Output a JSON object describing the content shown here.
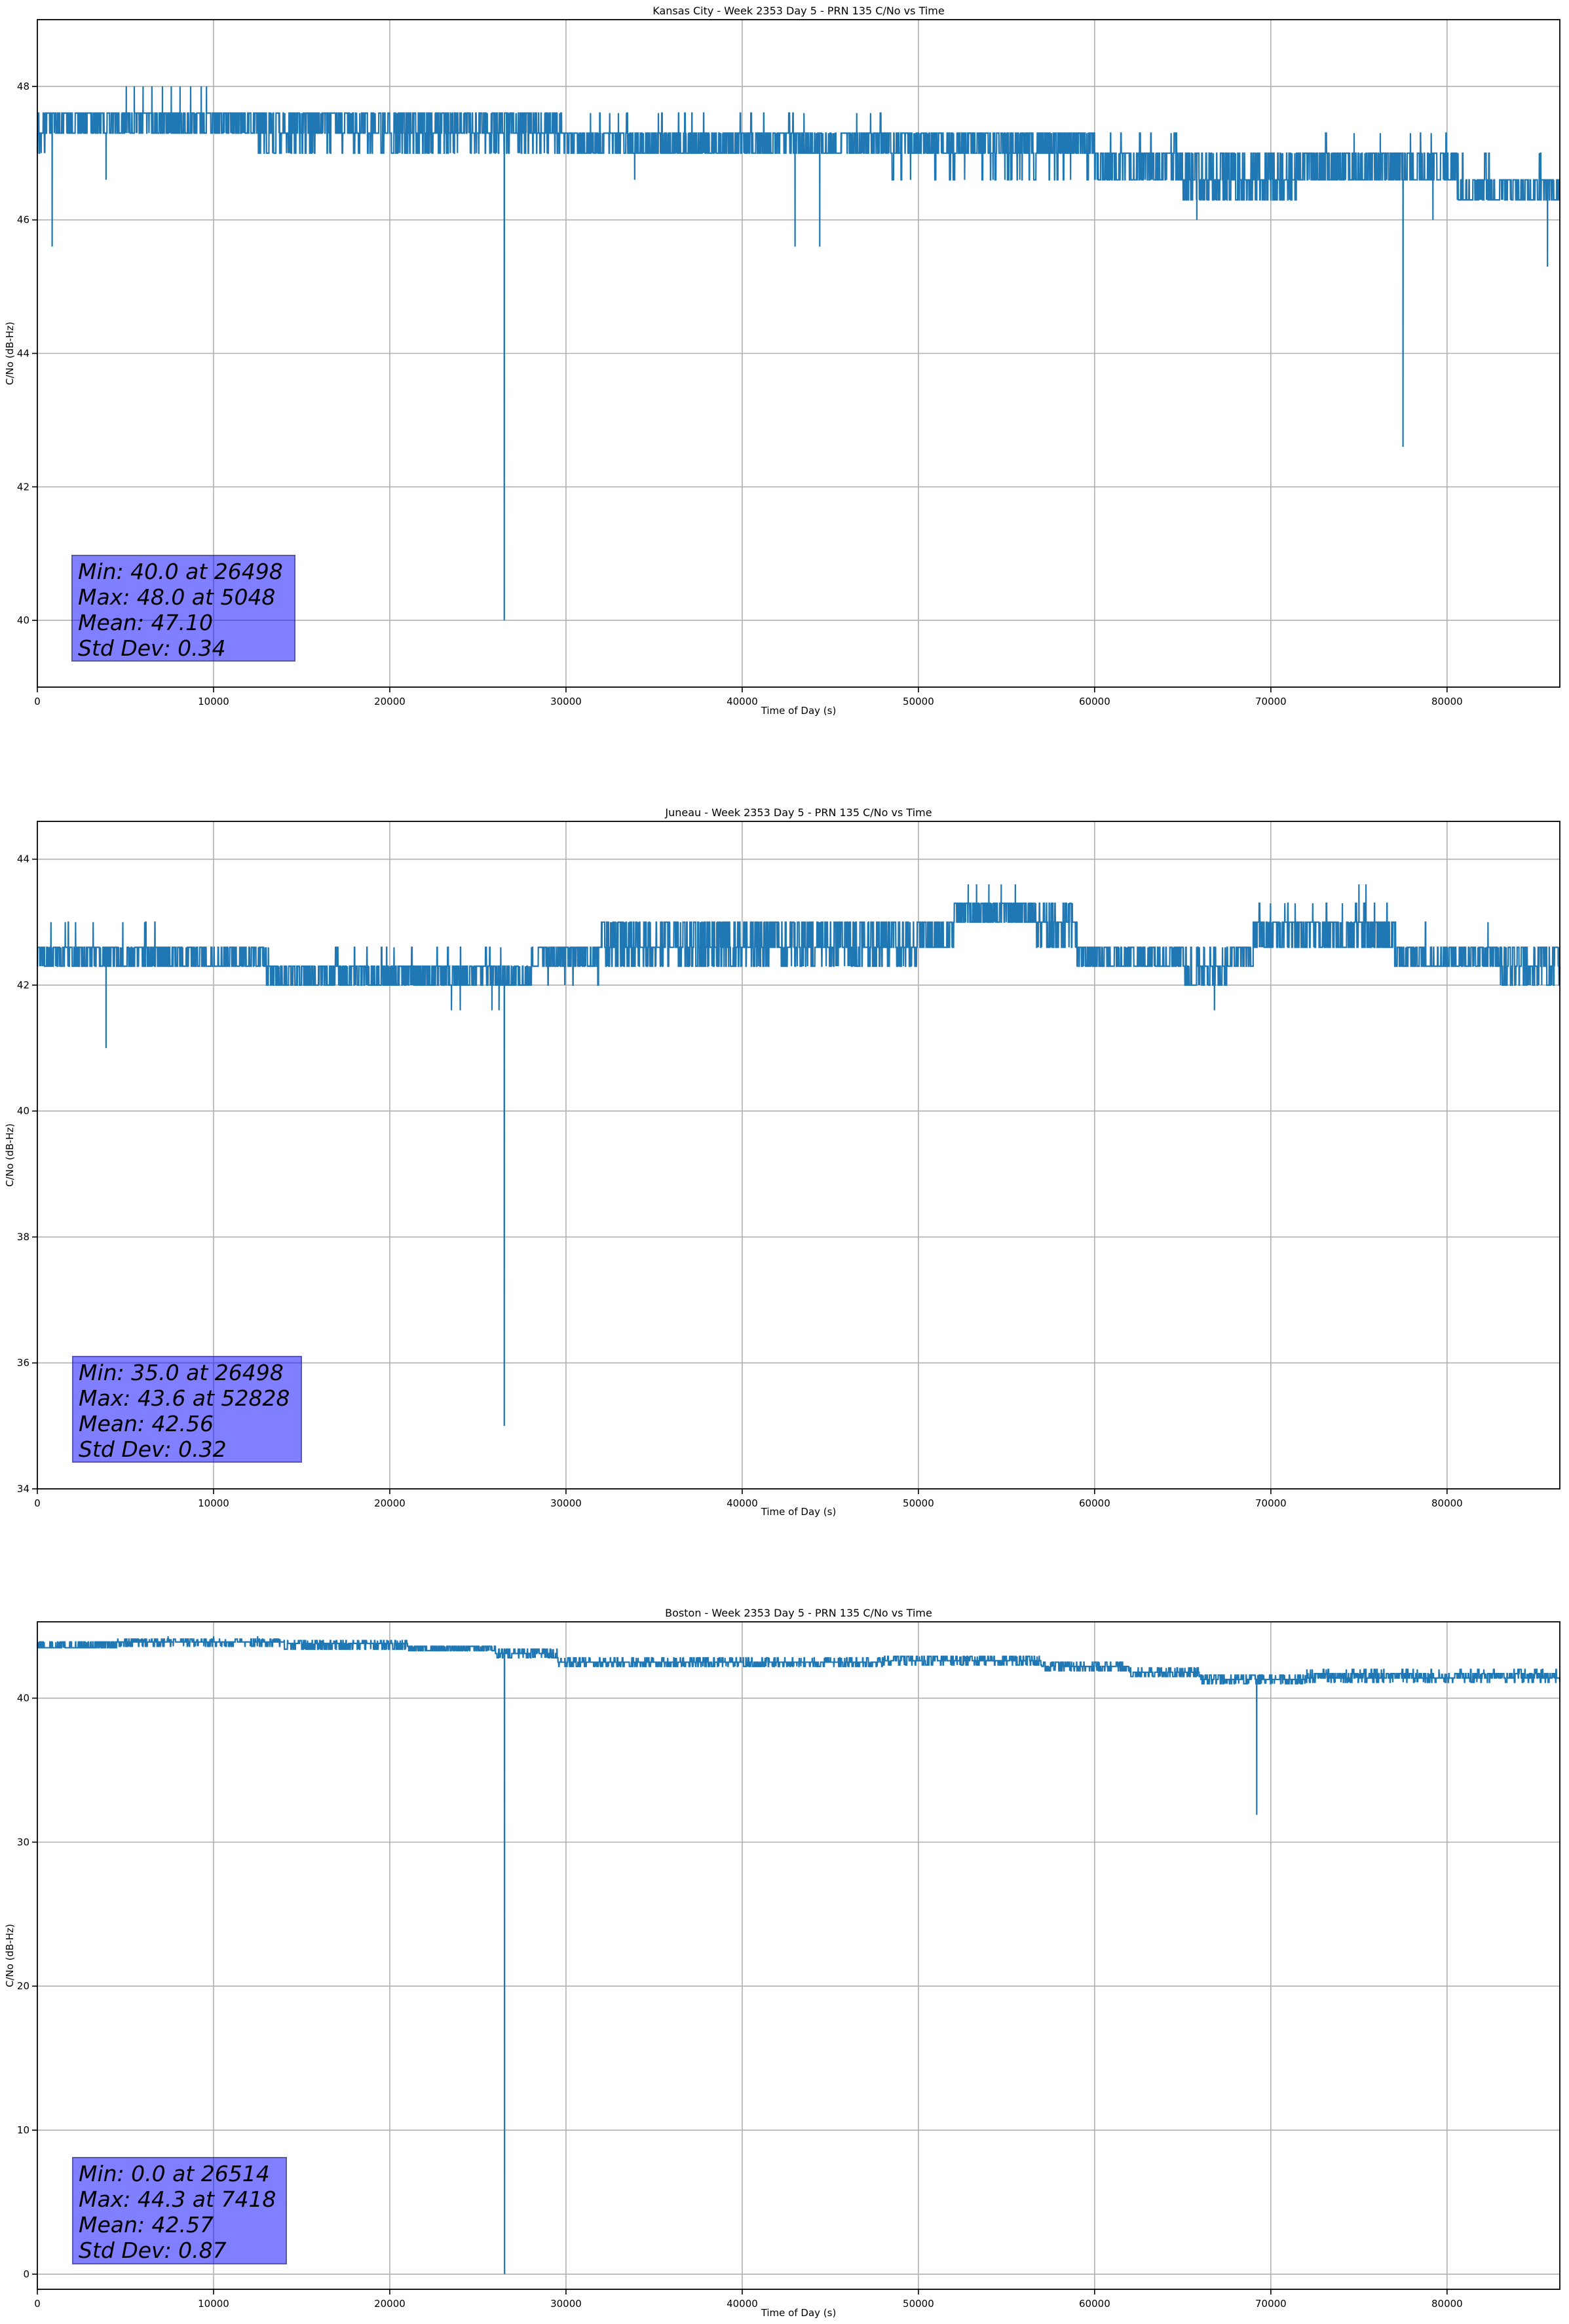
{
  "chart_data": [
    {
      "type": "line",
      "title": "Kansas City - Week 2353 Day 5 - PRN 135 C/No vs Time",
      "xlabel": "Time of Day (s)",
      "ylabel": "C/No (dB-Hz)",
      "xlim": [
        0,
        86400
      ],
      "ylim": [
        39,
        49
      ],
      "xticks": [
        0,
        10000,
        20000,
        30000,
        40000,
        50000,
        60000,
        70000,
        80000
      ],
      "yticks": [
        40,
        42,
        44,
        46,
        48
      ],
      "grid": true,
      "annotation": [
        "Min: 40.0 at 26498",
        "Max: 48.0 at 5048",
        "Mean: 47.10",
        "Std Dev: 0.34"
      ],
      "annotation_color": "#8080ff",
      "series": {
        "name": "C/No",
        "color": "#1f77b4",
        "regimes": [
          {
            "from": 0,
            "to": 500,
            "levels": [
              47.0,
              47.3,
              47.6
            ],
            "weights": [
              1,
              1,
              1
            ]
          },
          {
            "from": 500,
            "to": 12500,
            "levels": [
              47.3,
              47.6
            ],
            "weights": [
              1,
              1.2
            ]
          },
          {
            "from": 12500,
            "to": 30000,
            "levels": [
              47.0,
              47.3,
              47.6
            ],
            "weights": [
              0.4,
              1,
              1
            ]
          },
          {
            "from": 30000,
            "to": 48000,
            "levels": [
              47.0,
              47.3,
              47.6
            ],
            "weights": [
              1,
              1,
              0.05
            ]
          },
          {
            "from": 48000,
            "to": 60000,
            "levels": [
              46.6,
              47.0,
              47.3
            ],
            "weights": [
              0.15,
              1,
              1
            ]
          },
          {
            "from": 60000,
            "to": 65000,
            "levels": [
              46.6,
              47.0,
              47.3
            ],
            "weights": [
              1,
              1,
              0.05
            ]
          },
          {
            "from": 65000,
            "to": 71500,
            "levels": [
              46.3,
              46.6,
              47.0
            ],
            "weights": [
              0.8,
              1,
              0.8
            ]
          },
          {
            "from": 71500,
            "to": 80500,
            "levels": [
              46.6,
              47.0,
              47.3
            ],
            "weights": [
              1,
              1,
              0.04
            ]
          },
          {
            "from": 80500,
            "to": 86400,
            "levels": [
              46.3,
              46.6,
              47.0
            ],
            "weights": [
              1,
              1,
              0.05
            ]
          }
        ],
        "spikes": [
          [
            840,
            45.6
          ],
          [
            3900,
            46.6
          ],
          [
            5048,
            48.0
          ],
          [
            5500,
            48.0
          ],
          [
            6000,
            48.0
          ],
          [
            6500,
            48.0
          ],
          [
            7100,
            48.0
          ],
          [
            7600,
            48.0
          ],
          [
            8100,
            48.0
          ],
          [
            8700,
            48.0
          ],
          [
            9300,
            48.0
          ],
          [
            9600,
            48.0
          ],
          [
            26498,
            40.0
          ],
          [
            33900,
            46.6
          ],
          [
            43000,
            45.6
          ],
          [
            44400,
            45.6
          ],
          [
            46500,
            47.6
          ],
          [
            65800,
            46.0
          ],
          [
            77500,
            42.6
          ],
          [
            79200,
            46.0
          ],
          [
            85700,
            45.3
          ]
        ]
      }
    },
    {
      "type": "line",
      "title": "Juneau - Week 2353 Day 5 - PRN 135 C/No vs Time",
      "xlabel": "Time of Day (s)",
      "ylabel": "C/No (dB-Hz)",
      "xlim": [
        0,
        86400
      ],
      "ylim": [
        34,
        44.6
      ],
      "xticks": [
        0,
        10000,
        20000,
        30000,
        40000,
        50000,
        60000,
        70000,
        80000
      ],
      "yticks": [
        34,
        36,
        38,
        40,
        42,
        44
      ],
      "grid": true,
      "annotation": [
        "Min: 35.0 at 26498",
        "Max: 43.6 at 52828",
        "Mean: 42.56",
        "Std Dev: 0.32"
      ],
      "annotation_color": "#8080ff",
      "series": {
        "name": "C/No",
        "color": "#1f77b4",
        "regimes": [
          {
            "from": 0,
            "to": 13000,
            "levels": [
              42.3,
              42.6,
              43.0
            ],
            "weights": [
              1,
              1,
              0.03
            ]
          },
          {
            "from": 13000,
            "to": 28000,
            "levels": [
              42.0,
              42.3,
              42.6
            ],
            "weights": [
              1,
              1,
              0.05
            ]
          },
          {
            "from": 28000,
            "to": 32000,
            "levels": [
              42.0,
              42.3,
              42.6
            ],
            "weights": [
              0.05,
              1,
              1
            ]
          },
          {
            "from": 32000,
            "to": 50000,
            "levels": [
              42.3,
              42.6,
              43.0
            ],
            "weights": [
              0.6,
              1,
              0.8
            ]
          },
          {
            "from": 50000,
            "to": 52000,
            "levels": [
              42.6,
              43.0
            ],
            "weights": [
              1,
              1
            ]
          },
          {
            "from": 52000,
            "to": 56500,
            "levels": [
              43.0,
              43.3
            ],
            "weights": [
              1,
              1.2
            ]
          },
          {
            "from": 56500,
            "to": 59000,
            "levels": [
              42.6,
              43.0,
              43.3
            ],
            "weights": [
              0.5,
              1,
              0.5
            ]
          },
          {
            "from": 59000,
            "to": 65000,
            "levels": [
              42.3,
              42.6
            ],
            "weights": [
              1,
              1
            ]
          },
          {
            "from": 65000,
            "to": 67500,
            "levels": [
              42.0,
              42.3,
              42.6
            ],
            "weights": [
              1,
              1,
              0.2
            ]
          },
          {
            "from": 67500,
            "to": 69000,
            "levels": [
              42.3,
              42.6
            ],
            "weights": [
              1,
              1
            ]
          },
          {
            "from": 69000,
            "to": 77000,
            "levels": [
              42.6,
              43.0,
              43.3
            ],
            "weights": [
              1,
              1.1,
              0.08
            ]
          },
          {
            "from": 77000,
            "to": 83000,
            "levels": [
              42.3,
              42.6,
              43.0
            ],
            "weights": [
              1,
              1,
              0.05
            ]
          },
          {
            "from": 83000,
            "to": 86400,
            "levels": [
              42.0,
              42.3,
              42.6
            ],
            "weights": [
              0.6,
              1,
              0.8
            ]
          }
        ],
        "spikes": [
          [
            3900,
            41.0
          ],
          [
            23500,
            41.6
          ],
          [
            24000,
            41.6
          ],
          [
            25800,
            41.6
          ],
          [
            26200,
            41.6
          ],
          [
            26498,
            35.0
          ],
          [
            52828,
            43.6
          ],
          [
            53300,
            43.6
          ],
          [
            54000,
            43.6
          ],
          [
            54700,
            43.6
          ],
          [
            55500,
            43.6
          ],
          [
            66800,
            41.6
          ],
          [
            75000,
            43.6
          ],
          [
            75400,
            43.6
          ]
        ]
      }
    },
    {
      "type": "line",
      "title": "Boston - Week 2353 Day 5 - PRN 135 C/No vs Time",
      "xlabel": "Time of Day (s)",
      "ylabel": "C/No (dB-Hz)",
      "xlim": [
        0,
        86400
      ],
      "ylim": [
        -1.05,
        45.3
      ],
      "xticks": [
        0,
        10000,
        20000,
        30000,
        40000,
        50000,
        60000,
        70000,
        80000
      ],
      "yticks": [
        0,
        10,
        20,
        30,
        40
      ],
      "grid": true,
      "annotation": [
        "Min: 0.0 at 26514",
        "Max: 44.3 at 7418",
        "Mean: 42.57",
        "Std Dev: 0.87"
      ],
      "annotation_color": "#8080ff",
      "series": {
        "name": "C/No",
        "color": "#1f77b4",
        "regimes": [
          {
            "from": 0,
            "to": 4500,
            "levels": [
              43.5,
              43.9
            ],
            "weights": [
              1,
              0.6
            ]
          },
          {
            "from": 4500,
            "to": 14000,
            "levels": [
              43.6,
              43.9,
              44.1
            ],
            "weights": [
              0.3,
              1,
              0.3
            ]
          },
          {
            "from": 14000,
            "to": 21000,
            "levels": [
              43.4,
              43.8,
              44.0
            ],
            "weights": [
              0.6,
              1,
              0.3
            ]
          },
          {
            "from": 21000,
            "to": 26000,
            "levels": [
              43.3,
              43.6
            ],
            "weights": [
              1,
              1
            ]
          },
          {
            "from": 26000,
            "to": 29500,
            "levels": [
              42.8,
              43.1,
              43.4
            ],
            "weights": [
              0.5,
              1,
              0.5
            ]
          },
          {
            "from": 29500,
            "to": 48000,
            "levels": [
              42.2,
              42.5,
              42.8
            ],
            "weights": [
              0.5,
              1,
              0.3
            ]
          },
          {
            "from": 48000,
            "to": 57000,
            "levels": [
              42.3,
              42.6,
              42.9
            ],
            "weights": [
              0.4,
              1,
              0.5
            ]
          },
          {
            "from": 57000,
            "to": 62000,
            "levels": [
              41.9,
              42.2,
              42.5
            ],
            "weights": [
              0.5,
              1,
              0.4
            ]
          },
          {
            "from": 62000,
            "to": 66000,
            "levels": [
              41.5,
              41.8,
              42.1
            ],
            "weights": [
              0.5,
              1,
              0.5
            ]
          },
          {
            "from": 66000,
            "to": 72000,
            "levels": [
              41.0,
              41.3,
              41.6
            ],
            "weights": [
              0.4,
              1,
              0.5
            ]
          },
          {
            "from": 72000,
            "to": 86400,
            "levels": [
              41.1,
              41.4,
              41.7,
              42.0
            ],
            "weights": [
              0.3,
              1,
              0.8,
              0.15
            ]
          }
        ],
        "spikes": [
          [
            7418,
            44.3
          ],
          [
            10000,
            44.3
          ],
          [
            12500,
            44.3
          ],
          [
            26514,
            0.0
          ],
          [
            69200,
            31.9
          ]
        ]
      }
    }
  ]
}
